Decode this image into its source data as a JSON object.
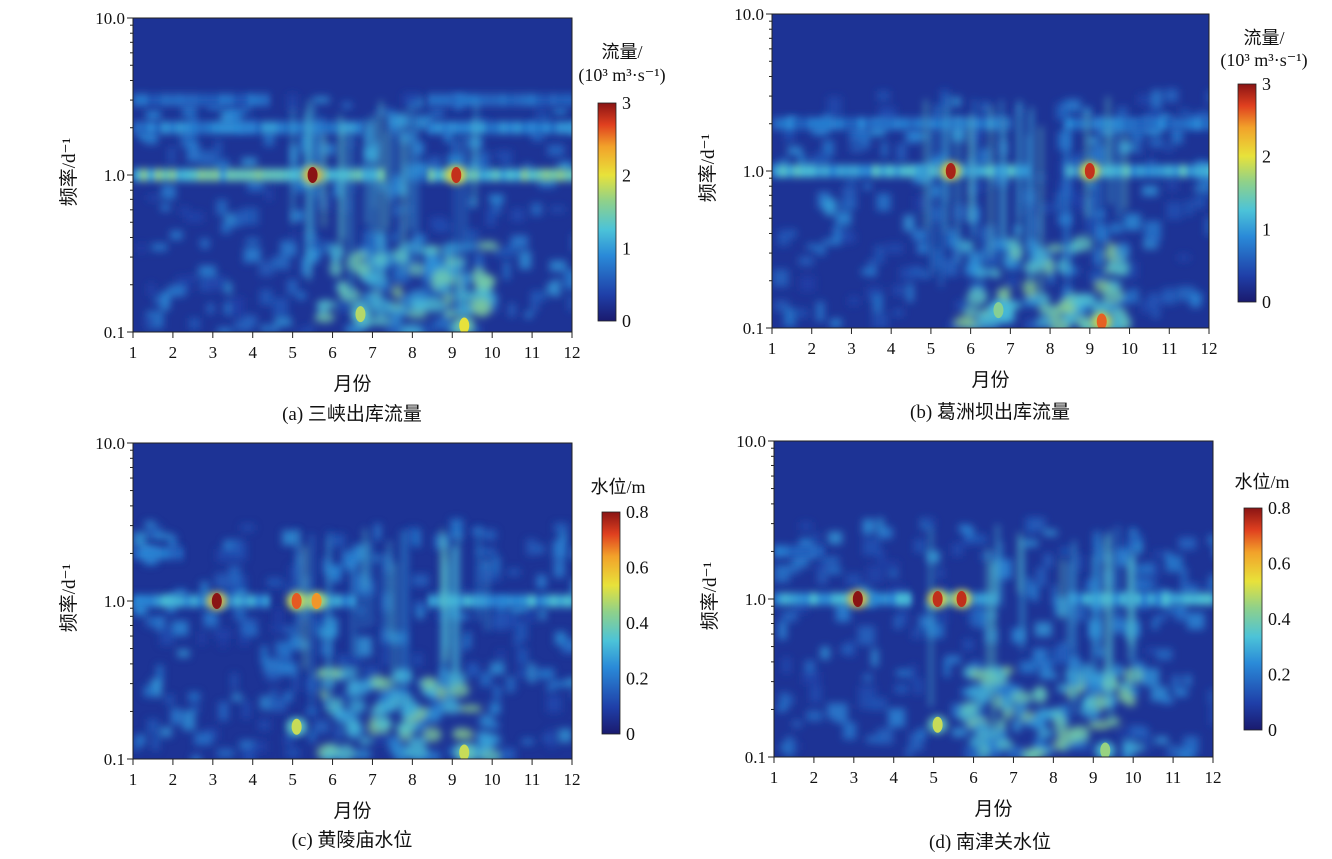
{
  "chart_data": [
    {
      "type": "heatmap",
      "caption": "(a) 三峡出库流量",
      "xlabel": "月份",
      "ylabel": "频率/d⁻¹",
      "xticks": [
        "1",
        "2",
        "3",
        "4",
        "5",
        "6",
        "7",
        "8",
        "9",
        "10",
        "11",
        "12"
      ],
      "xlim": [
        1,
        12
      ],
      "yscale": "log",
      "yticks": [
        "0.1",
        "1.0",
        "10.0"
      ],
      "ylim": [
        0.1,
        10.0
      ],
      "colorbar": {
        "title_line1": "流量/",
        "title_line2": "(10³ m³·s⁻¹)",
        "ticks": [
          "0",
          "1",
          "2",
          "3"
        ],
        "range": [
          0,
          3
        ]
      },
      "grid": false,
      "bands": [
        {
          "freq": 1.0,
          "level": 1.4,
          "gap_months": [
            [
              7.2,
              8.3
            ]
          ]
        },
        {
          "freq": 2.0,
          "level": 0.9,
          "gap_months": [
            [
              6.7,
              8.3
            ]
          ]
        },
        {
          "freq": 3.0,
          "level": 0.7,
          "gap_months": [
            [
              4.3,
              8.3
            ]
          ]
        }
      ],
      "hotspots": [
        {
          "month": 5.5,
          "freq": 1.0,
          "value": 3.0
        },
        {
          "month": 9.1,
          "freq": 1.0,
          "value": 2.8
        },
        {
          "month": 9.3,
          "freq": 0.11,
          "value": 2.0
        },
        {
          "month": 6.7,
          "freq": 0.13,
          "value": 1.8
        }
      ]
    },
    {
      "type": "heatmap",
      "caption": "(b) 葛洲坝出库流量",
      "xlabel": "月份",
      "ylabel": "频率/d⁻¹",
      "xticks": [
        "1",
        "2",
        "3",
        "4",
        "5",
        "6",
        "7",
        "8",
        "9",
        "10",
        "11",
        "12"
      ],
      "xlim": [
        1,
        12
      ],
      "yscale": "log",
      "yticks": [
        "0.1",
        "1.0",
        "10.0"
      ],
      "ylim": [
        0.1,
        10.0
      ],
      "colorbar": {
        "title_line1": "流量/",
        "title_line2": "(10³ m³·s⁻¹)",
        "ticks": [
          "0",
          "1",
          "2",
          "3"
        ],
        "range": [
          0,
          3
        ]
      },
      "grid": false,
      "bands": [
        {
          "freq": 1.0,
          "level": 1.2,
          "gap_months": [
            [
              7.3,
              8.3
            ]
          ]
        },
        {
          "freq": 2.0,
          "level": 0.8,
          "gap_months": [
            [
              6.7,
              8.3
            ]
          ]
        }
      ],
      "hotspots": [
        {
          "month": 5.5,
          "freq": 1.0,
          "value": 2.9
        },
        {
          "month": 9.0,
          "freq": 1.0,
          "value": 2.8
        },
        {
          "month": 9.3,
          "freq": 0.11,
          "value": 2.6
        },
        {
          "month": 6.7,
          "freq": 0.13,
          "value": 1.6
        }
      ]
    },
    {
      "type": "heatmap",
      "caption": "(c) 黄陵庙水位",
      "xlabel": "月份",
      "ylabel": "频率/d⁻¹",
      "xticks": [
        "1",
        "2",
        "3",
        "4",
        "5",
        "6",
        "7",
        "8",
        "9",
        "10",
        "11",
        "12"
      ],
      "xlim": [
        1,
        12
      ],
      "yscale": "log",
      "yticks": [
        "0.1",
        "1.0",
        "10.0"
      ],
      "ylim": [
        0.1,
        10.0
      ],
      "colorbar": {
        "title_line1": "水位/m",
        "title_line2": "",
        "ticks": [
          "0",
          "0.2",
          "0.4",
          "0.6",
          "0.8"
        ],
        "range": [
          0,
          0.8
        ]
      },
      "grid": false,
      "bands": [
        {
          "freq": 1.0,
          "level": 0.3,
          "gap_months": [
            [
              4.3,
              4.9
            ],
            [
              6.5,
              8.3
            ]
          ]
        },
        {
          "freq": 2.0,
          "level": 0.2,
          "gap_months": [
            [
              2.2,
              11.8
            ]
          ]
        }
      ],
      "hotspots": [
        {
          "month": 3.1,
          "freq": 1.0,
          "value": 0.8
        },
        {
          "month": 5.1,
          "freq": 1.0,
          "value": 0.7
        },
        {
          "month": 5.6,
          "freq": 1.0,
          "value": 0.65
        },
        {
          "month": 5.1,
          "freq": 0.16,
          "value": 0.5
        },
        {
          "month": 9.3,
          "freq": 0.11,
          "value": 0.5
        }
      ]
    },
    {
      "type": "heatmap",
      "caption": "(d) 南津关水位",
      "xlabel": "月份",
      "ylabel": "频率/d⁻¹",
      "xticks": [
        "1",
        "2",
        "3",
        "4",
        "5",
        "6",
        "7",
        "8",
        "9",
        "10",
        "11",
        "12"
      ],
      "xlim": [
        1,
        12
      ],
      "yscale": "log",
      "yticks": [
        "0.1",
        "1.0",
        "10.0"
      ],
      "ylim": [
        0.1,
        10.0
      ],
      "colorbar": {
        "title_line1": "水位/m",
        "title_line2": "",
        "ticks": [
          "0",
          "0.2",
          "0.4",
          "0.6",
          "0.8"
        ],
        "range": [
          0,
          0.8
        ]
      },
      "grid": false,
      "bands": [
        {
          "freq": 1.0,
          "level": 0.3,
          "gap_months": [
            [
              4.3,
              4.9
            ],
            [
              6.5,
              8.3
            ]
          ]
        },
        {
          "freq": 2.0,
          "level": 0.2,
          "gap_months": [
            [
              2.2,
              11.8
            ]
          ]
        }
      ],
      "hotspots": [
        {
          "month": 3.1,
          "freq": 1.0,
          "value": 0.8
        },
        {
          "month": 5.1,
          "freq": 1.0,
          "value": 0.75
        },
        {
          "month": 5.7,
          "freq": 1.0,
          "value": 0.75
        },
        {
          "month": 5.1,
          "freq": 0.16,
          "value": 0.5
        },
        {
          "month": 9.3,
          "freq": 0.11,
          "value": 0.45
        }
      ]
    }
  ]
}
